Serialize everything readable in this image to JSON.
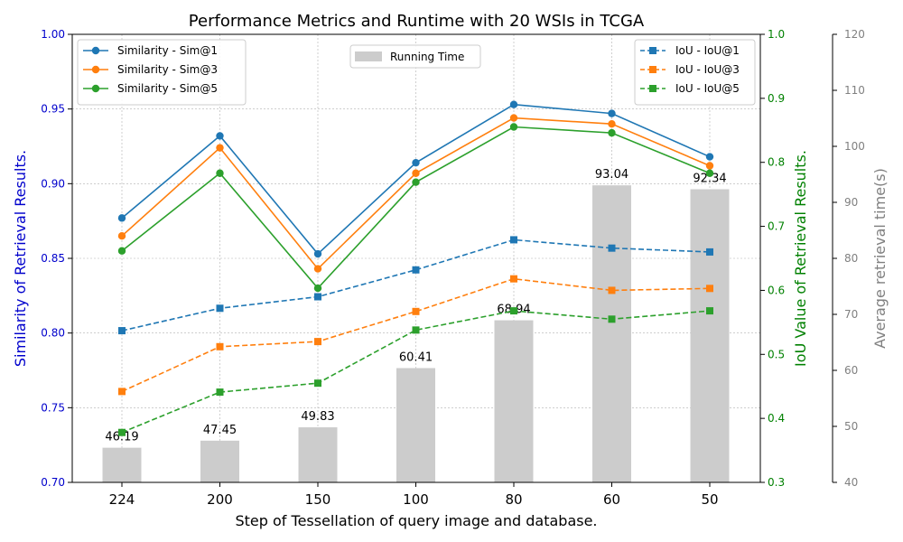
{
  "chart_data": {
    "type": "bar+line",
    "title": "Performance Metrics and Runtime with 20 WSIs in TCGA",
    "xlabel": "Step of Tessellation of query image and database.",
    "categories": [
      "224",
      "200",
      "150",
      "100",
      "80",
      "60",
      "50"
    ],
    "y_left": {
      "label": "Similarity of Retrieval Results.",
      "lim": [
        0.7,
        1.0
      ],
      "ticks": [
        "0.70",
        "0.75",
        "0.80",
        "0.85",
        "0.90",
        "0.95",
        "1.00"
      ],
      "color": "#0000cc"
    },
    "y_right1": {
      "label": "IoU Value of Retrieval Results.",
      "lim": [
        0.3,
        1.0
      ],
      "ticks": [
        "0.3",
        "0.4",
        "0.5",
        "0.6",
        "0.7",
        "0.8",
        "0.9",
        "1.0"
      ],
      "color": "#008000"
    },
    "y_right2": {
      "label": "Average retrieval time(s)",
      "lim": [
        40,
        120
      ],
      "ticks": [
        "40",
        "50",
        "60",
        "70",
        "80",
        "90",
        "100",
        "110",
        "120"
      ],
      "color": "#808080"
    },
    "bars": {
      "name": "Running Time",
      "values": [
        46.19,
        47.45,
        49.83,
        60.41,
        68.94,
        93.04,
        92.34
      ],
      "labels": [
        "46.19",
        "47.45",
        "49.83",
        "60.41",
        "68.94",
        "93.04",
        "92.34"
      ],
      "color": "#cccccc"
    },
    "similarity_series": [
      {
        "name": "Similarity - Sim@1",
        "values": [
          0.877,
          0.932,
          0.853,
          0.914,
          0.953,
          0.947,
          0.918
        ],
        "color": "#1f77b4"
      },
      {
        "name": "Similarity - Sim@3",
        "values": [
          0.865,
          0.924,
          0.843,
          0.907,
          0.944,
          0.94,
          0.912
        ],
        "color": "#ff7f0e"
      },
      {
        "name": "Similarity - Sim@5",
        "values": [
          0.855,
          0.907,
          0.83,
          0.901,
          0.938,
          0.934,
          0.907
        ],
        "color": "#2ca02c"
      }
    ],
    "iou_series": [
      {
        "name": "IoU - IoU@1",
        "values": [
          0.537,
          0.572,
          0.59,
          0.632,
          0.679,
          0.666,
          0.66
        ],
        "color": "#1f77b4"
      },
      {
        "name": "IoU - IoU@3",
        "values": [
          0.442,
          0.512,
          0.52,
          0.567,
          0.618,
          0.6,
          0.603
        ],
        "color": "#ff7f0e"
      },
      {
        "name": "IoU - IoU@5",
        "values": [
          0.378,
          0.441,
          0.455,
          0.538,
          0.568,
          0.555,
          0.568
        ],
        "color": "#2ca02c"
      }
    ],
    "grid": true,
    "legends": {
      "similarity": "top-left",
      "running_time": "top-center",
      "iou": "top-right"
    }
  }
}
